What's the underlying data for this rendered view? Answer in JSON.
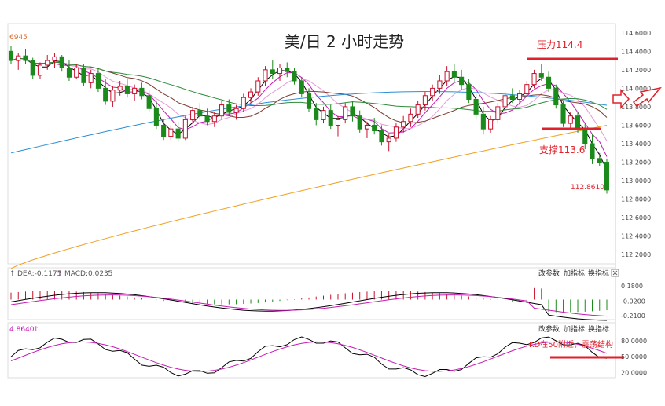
{
  "colors": {
    "up": "#c8102e",
    "down": "#1a8a1a",
    "ma_black": "#000000",
    "ma_magenta": "#c61bb5",
    "ma_pink": "#e69ad8",
    "ma_brown": "#7a3b2e",
    "ma_green": "#2e8b3a",
    "ma_blue": "#2a8fd6",
    "ma_orange": "#f0a020",
    "annotation_red": "#e0202a",
    "axis_text": "#444444",
    "panel_border": "#bbbbbb"
  },
  "main": {
    "title": "美/日 2 小时走势",
    "top_left_price": "6945",
    "y_ticks": [
      "114.6000",
      "114.4000",
      "114.2000",
      "114.0000",
      "113.8000",
      "113.6000",
      "113.4000",
      "113.2000",
      "113.0000",
      "112.8000",
      "112.6000",
      "112.4000",
      "112.2000"
    ],
    "resistance": {
      "label": "压力114.4",
      "value": 114.4
    },
    "support": {
      "label": "支撑113.6",
      "value": 113.6
    },
    "low_label": "112.8610",
    "low_value": 112.861
  },
  "macd": {
    "header": "DEA:-0.1175",
    "header2": "MACD:0.0235",
    "buttons": [
      "改参数",
      "加指标",
      "换指标"
    ],
    "close_icon": "close-icon",
    "y_ticks": [
      "0.1800",
      "-0.0200",
      "-0.2100"
    ]
  },
  "kd": {
    "header": "4.8640",
    "buttons": [
      "改参数",
      "加指标",
      "换指标"
    ],
    "note": "KD在50附近，震荡结构",
    "y_ticks": [
      "80.0000",
      "50.0000",
      "20.0000"
    ]
  },
  "chart_data": {
    "type": "candlestick",
    "title": "美/日 2 小时走势",
    "y_range": [
      112.1,
      114.7
    ],
    "candles": [
      [
        114.4,
        114.46,
        114.26,
        114.3
      ],
      [
        114.3,
        114.38,
        114.2,
        114.35
      ],
      [
        114.35,
        114.42,
        114.26,
        114.3
      ],
      [
        114.3,
        114.33,
        114.1,
        114.14
      ],
      [
        114.14,
        114.28,
        114.1,
        114.25
      ],
      [
        114.25,
        114.36,
        114.2,
        114.3
      ],
      [
        114.3,
        114.38,
        114.22,
        114.34
      ],
      [
        114.34,
        114.36,
        114.18,
        114.22
      ],
      [
        114.22,
        114.3,
        114.08,
        114.12
      ],
      [
        114.12,
        114.26,
        114.1,
        114.22
      ],
      [
        114.22,
        114.26,
        114.02,
        114.06
      ],
      [
        114.06,
        114.2,
        114.0,
        114.16
      ],
      [
        114.16,
        114.22,
        113.96,
        114.0
      ],
      [
        114.0,
        114.1,
        113.82,
        113.86
      ],
      [
        113.86,
        114.02,
        113.8,
        113.98
      ],
      [
        113.98,
        114.08,
        113.92,
        114.02
      ],
      [
        114.02,
        114.1,
        113.9,
        113.94
      ],
      [
        113.94,
        114.04,
        113.86,
        114.0
      ],
      [
        114.0,
        114.06,
        113.88,
        113.92
      ],
      [
        113.92,
        113.98,
        113.74,
        113.78
      ],
      [
        113.78,
        113.86,
        113.56,
        113.6
      ],
      [
        113.6,
        113.66,
        113.44,
        113.48
      ],
      [
        113.48,
        113.6,
        113.44,
        113.56
      ],
      [
        113.56,
        113.64,
        113.42,
        113.46
      ],
      [
        113.46,
        113.7,
        113.44,
        113.66
      ],
      [
        113.66,
        113.8,
        113.62,
        113.76
      ],
      [
        113.76,
        113.84,
        113.66,
        113.7
      ],
      [
        113.7,
        113.78,
        113.6,
        113.64
      ],
      [
        113.64,
        113.74,
        113.58,
        113.7
      ],
      [
        113.7,
        113.86,
        113.66,
        113.82
      ],
      [
        113.82,
        113.88,
        113.7,
        113.74
      ],
      [
        113.74,
        113.82,
        113.66,
        113.78
      ],
      [
        113.78,
        113.94,
        113.74,
        113.9
      ],
      [
        113.9,
        114.0,
        113.84,
        113.96
      ],
      [
        113.96,
        114.12,
        113.92,
        114.08
      ],
      [
        114.08,
        114.24,
        114.02,
        114.2
      ],
      [
        114.2,
        114.3,
        114.1,
        114.16
      ],
      [
        114.16,
        114.26,
        114.08,
        114.22
      ],
      [
        114.22,
        114.28,
        114.12,
        114.18
      ],
      [
        114.18,
        114.22,
        114.04,
        114.08
      ],
      [
        114.08,
        114.12,
        113.9,
        113.94
      ],
      [
        113.94,
        114.0,
        113.74,
        113.78
      ],
      [
        113.78,
        113.84,
        113.6,
        113.66
      ],
      [
        113.66,
        113.8,
        113.62,
        113.76
      ],
      [
        113.76,
        113.82,
        113.56,
        113.6
      ],
      [
        113.6,
        113.7,
        113.48,
        113.66
      ],
      [
        113.66,
        113.84,
        113.62,
        113.8
      ],
      [
        113.8,
        113.86,
        113.64,
        113.7
      ],
      [
        113.7,
        113.76,
        113.52,
        113.56
      ],
      [
        113.56,
        113.64,
        113.46,
        113.6
      ],
      [
        113.6,
        113.68,
        113.5,
        113.54
      ],
      [
        113.54,
        113.6,
        113.38,
        113.42
      ],
      [
        113.42,
        113.5,
        113.32,
        113.46
      ],
      [
        113.46,
        113.62,
        113.42,
        113.58
      ],
      [
        113.58,
        113.7,
        113.52,
        113.64
      ],
      [
        113.64,
        113.78,
        113.58,
        113.72
      ],
      [
        113.72,
        113.86,
        113.68,
        113.82
      ],
      [
        113.82,
        113.96,
        113.76,
        113.92
      ],
      [
        113.92,
        114.04,
        113.86,
        114.0
      ],
      [
        114.0,
        114.14,
        113.94,
        114.08
      ],
      [
        114.08,
        114.24,
        114.02,
        114.18
      ],
      [
        114.18,
        114.26,
        114.06,
        114.12
      ],
      [
        114.12,
        114.2,
        113.98,
        114.04
      ],
      [
        114.04,
        114.1,
        113.84,
        113.88
      ],
      [
        113.88,
        113.94,
        113.66,
        113.72
      ],
      [
        113.72,
        113.8,
        113.5,
        113.56
      ],
      [
        113.56,
        113.7,
        113.52,
        113.66
      ],
      [
        113.66,
        113.84,
        113.62,
        113.8
      ],
      [
        113.8,
        113.96,
        113.76,
        113.92
      ],
      [
        113.92,
        114.0,
        113.84,
        113.88
      ],
      [
        113.88,
        113.98,
        113.82,
        113.94
      ],
      [
        113.94,
        114.08,
        113.9,
        114.04
      ],
      [
        114.04,
        114.2,
        114.0,
        114.16
      ],
      [
        114.16,
        114.26,
        114.08,
        114.12
      ],
      [
        114.12,
        114.18,
        113.96,
        114.0
      ],
      [
        114.0,
        114.04,
        113.78,
        113.82
      ],
      [
        113.82,
        113.86,
        113.58,
        113.62
      ],
      [
        113.62,
        113.74,
        113.56,
        113.7
      ],
      [
        113.7,
        113.74,
        113.52,
        113.56
      ],
      [
        113.56,
        113.62,
        113.34,
        113.4
      ],
      [
        113.4,
        113.5,
        113.18,
        113.24
      ],
      [
        113.24,
        113.3,
        113.16,
        113.2
      ],
      [
        113.2,
        113.24,
        112.86,
        112.9
      ]
    ]
  }
}
